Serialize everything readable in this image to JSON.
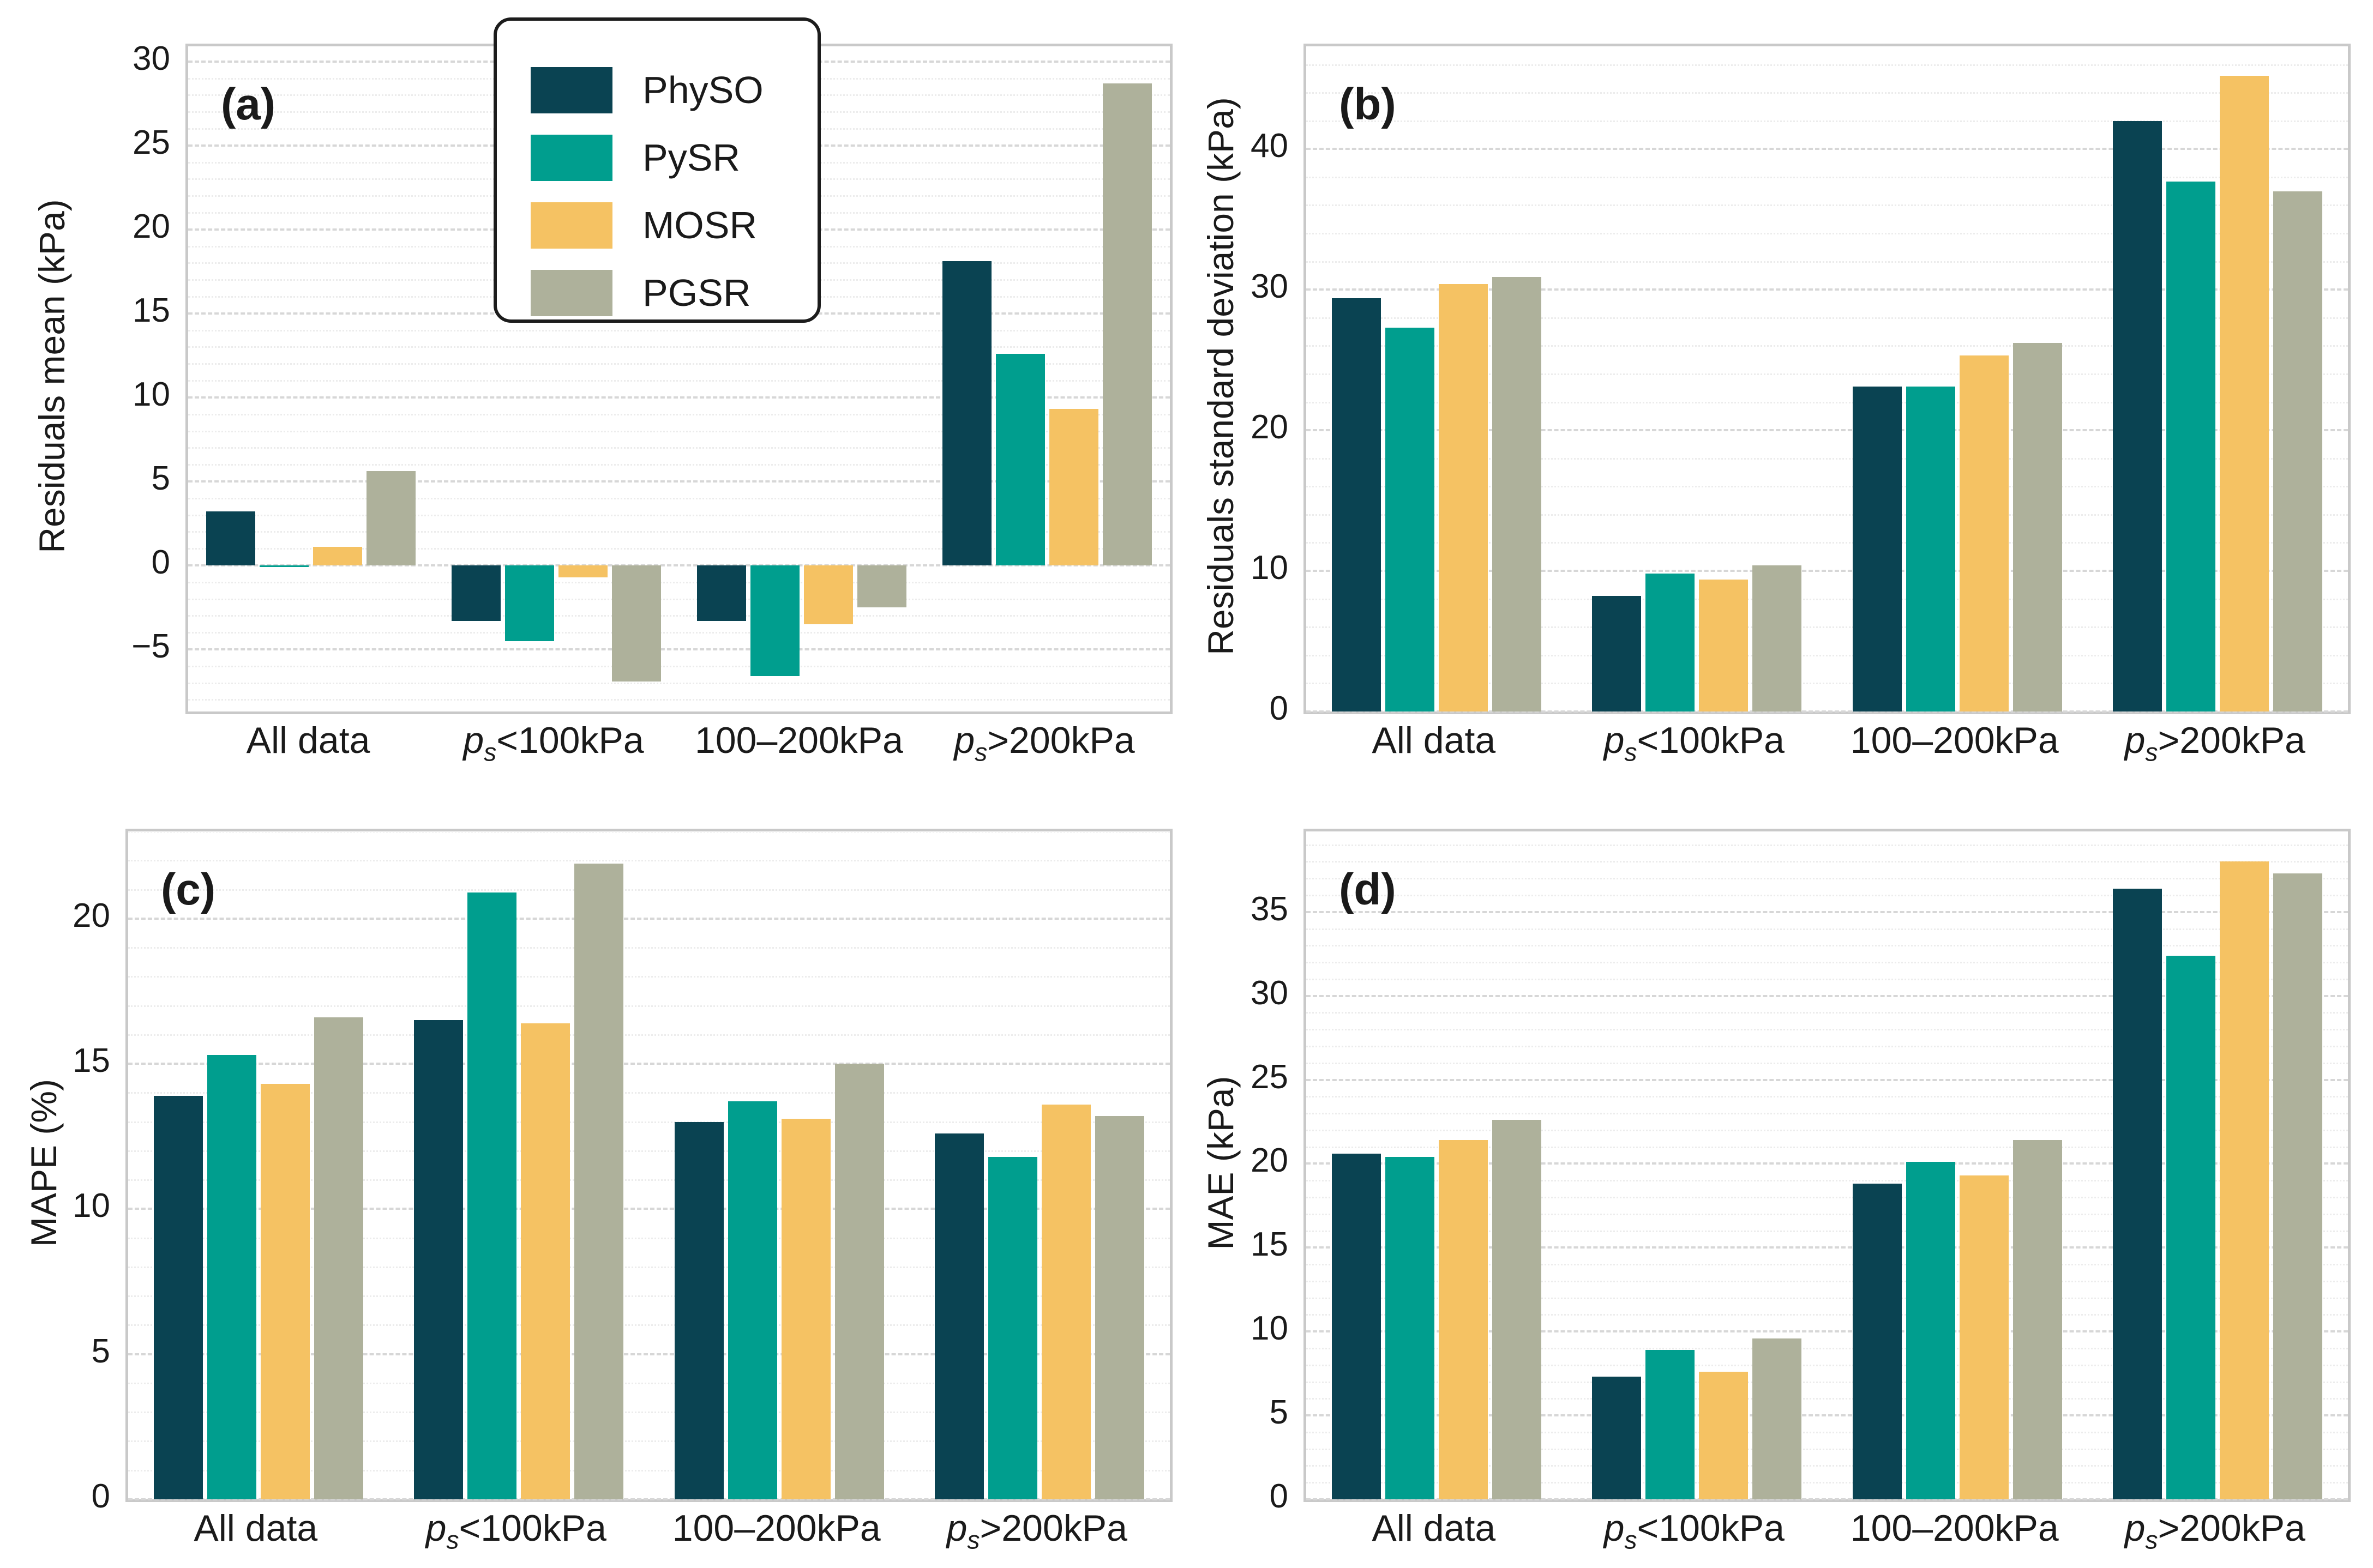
{
  "figure": {
    "background": "#ffffff",
    "text_color": "#1a1a1a",
    "frame_color": "#c9c9c9",
    "grid_major_color": "#d7d7d7",
    "grid_minor_color": "#ececec"
  },
  "legend": {
    "items": [
      {
        "label": "PhySO",
        "color": "#0a4352"
      },
      {
        "label": "PySR",
        "color": "#009e8e"
      },
      {
        "label": "MOSR",
        "color": "#f5c263"
      },
      {
        "label": "PGSR",
        "color": "#aeb19b"
      }
    ]
  },
  "chart_data": [
    {
      "id": "a",
      "type": "bar",
      "tag": "(a)",
      "title": "",
      "xlabel": "",
      "ylabel": "Residuals mean (kPa)",
      "categories": [
        "All data",
        "p_s<100kPa",
        "100–200kPa",
        "p_s>200kPa"
      ],
      "series": [
        {
          "name": "PhySO",
          "color": "#0a4352",
          "values": [
            3.2,
            -3.3,
            -3.3,
            18.1
          ]
        },
        {
          "name": "PySR",
          "color": "#009e8e",
          "values": [
            -0.1,
            -4.5,
            -6.6,
            12.6
          ]
        },
        {
          "name": "MOSR",
          "color": "#f5c263",
          "values": [
            1.1,
            -0.7,
            -3.5,
            9.3
          ]
        },
        {
          "name": "PGSR",
          "color": "#aeb19b",
          "values": [
            5.6,
            -6.9,
            -2.5,
            28.7
          ]
        }
      ],
      "ylim": [
        -8.7,
        30.9
      ],
      "yticks": [
        -5,
        0,
        5,
        10,
        15,
        20,
        25,
        30
      ],
      "minor_step": 1,
      "grid": true,
      "legend_position": "upper-center-inside"
    },
    {
      "id": "b",
      "type": "bar",
      "tag": "(b)",
      "title": "",
      "xlabel": "",
      "ylabel": "Residuals standard deviation (kPa)",
      "categories": [
        "All data",
        "p_s<100kPa",
        "100–200kPa",
        "p_s>200kPa"
      ],
      "series": [
        {
          "name": "PhySO",
          "color": "#0a4352",
          "values": [
            29.4,
            8.2,
            23.1,
            42.0
          ]
        },
        {
          "name": "PySR",
          "color": "#009e8e",
          "values": [
            27.3,
            9.8,
            23.1,
            37.7
          ]
        },
        {
          "name": "MOSR",
          "color": "#f5c263",
          "values": [
            30.4,
            9.4,
            25.3,
            45.2
          ]
        },
        {
          "name": "PGSR",
          "color": "#aeb19b",
          "values": [
            30.9,
            10.4,
            26.2,
            37.0
          ]
        }
      ],
      "ylim": [
        0,
        47.3
      ],
      "yticks": [
        0,
        10,
        20,
        30,
        40
      ],
      "minor_step": 2,
      "grid": true,
      "legend_position": "none"
    },
    {
      "id": "c",
      "type": "bar",
      "tag": "(c)",
      "title": "",
      "xlabel": "",
      "ylabel": "MAPE (%)",
      "categories": [
        "All data",
        "p_s<100kPa",
        "100–200kPa",
        "p_s>200kPa"
      ],
      "series": [
        {
          "name": "PhySO",
          "color": "#0a4352",
          "values": [
            13.9,
            16.5,
            13.0,
            12.6
          ]
        },
        {
          "name": "PySR",
          "color": "#009e8e",
          "values": [
            15.3,
            20.9,
            13.7,
            11.8
          ]
        },
        {
          "name": "MOSR",
          "color": "#f5c263",
          "values": [
            14.3,
            16.4,
            13.1,
            13.6
          ]
        },
        {
          "name": "PGSR",
          "color": "#aeb19b",
          "values": [
            16.6,
            21.9,
            15.0,
            13.2
          ]
        }
      ],
      "ylim": [
        0,
        23
      ],
      "yticks": [
        0,
        5,
        10,
        15,
        20
      ],
      "minor_step": 1,
      "grid": true,
      "legend_position": "none"
    },
    {
      "id": "d",
      "type": "bar",
      "tag": "(d)",
      "title": "",
      "xlabel": "",
      "ylabel": "MAE (kPa)",
      "categories": [
        "All data",
        "p_s<100kPa",
        "100–200kPa",
        "p_s>200kPa"
      ],
      "series": [
        {
          "name": "PhySO",
          "color": "#0a4352",
          "values": [
            20.6,
            7.3,
            18.8,
            36.4
          ]
        },
        {
          "name": "PySR",
          "color": "#009e8e",
          "values": [
            20.4,
            8.9,
            20.1,
            32.4
          ]
        },
        {
          "name": "MOSR",
          "color": "#f5c263",
          "values": [
            21.4,
            7.6,
            19.3,
            38.0
          ]
        },
        {
          "name": "PGSR",
          "color": "#aeb19b",
          "values": [
            22.6,
            9.6,
            21.4,
            37.3
          ]
        }
      ],
      "ylim": [
        0,
        39.8
      ],
      "yticks": [
        0,
        5,
        10,
        15,
        20,
        25,
        30,
        35
      ],
      "minor_step": 1,
      "grid": true,
      "legend_position": "none"
    }
  ]
}
